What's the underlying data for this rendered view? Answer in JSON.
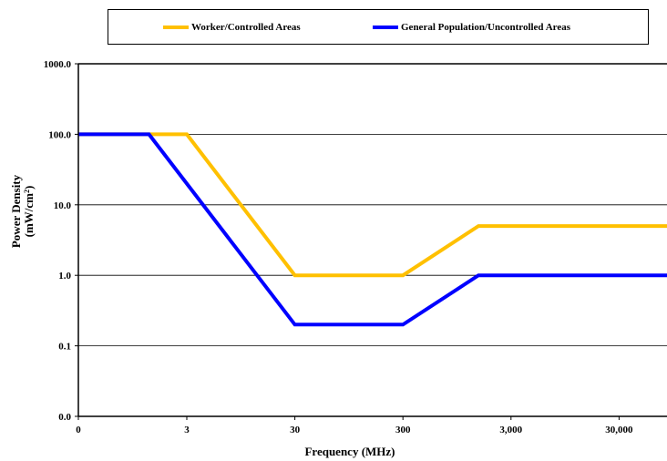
{
  "chart_data": {
    "type": "line",
    "title": "",
    "xlabel": "Frequency (MHz)",
    "ylabel_line1": "Power Density",
    "ylabel_line2_base": "(mW/cm",
    "ylabel_line2_sup": "2",
    "ylabel_line2_end": ")",
    "yscale": "log",
    "ylim": [
      0.01,
      1000
    ],
    "y_ticks": [
      {
        "value": 0.01,
        "label": "0.0"
      },
      {
        "value": 0.1,
        "label": "0.1"
      },
      {
        "value": 1,
        "label": "1.0"
      },
      {
        "value": 10,
        "label": "10.0"
      },
      {
        "value": 100,
        "label": "100.0"
      },
      {
        "value": 1000,
        "label": "1000.0"
      }
    ],
    "xscale": "log",
    "xlim": [
      0.3,
      100000
    ],
    "x_ticks": [
      {
        "value": 0.3,
        "label": "0"
      },
      {
        "value": 3,
        "label": "3"
      },
      {
        "value": 30,
        "label": "30"
      },
      {
        "value": 300,
        "label": "300"
      },
      {
        "value": 3000,
        "label": "3,000"
      },
      {
        "value": 30000,
        "label": "30,000"
      }
    ],
    "grid": "horizontal",
    "legend_position": "top",
    "series": [
      {
        "name": "Worker/Controlled Areas",
        "color": "#FFC000",
        "points": [
          [
            0.3,
            100
          ],
          [
            3,
            100
          ],
          [
            30,
            1
          ],
          [
            300,
            1
          ],
          [
            1500,
            5
          ],
          [
            100000,
            5
          ]
        ]
      },
      {
        "name": "General Population/Uncontrolled Areas",
        "color": "#0000FF",
        "points": [
          [
            0.3,
            100
          ],
          [
            1.34,
            100
          ],
          [
            30,
            0.2
          ],
          [
            300,
            0.2
          ],
          [
            1500,
            1
          ],
          [
            100000,
            1
          ]
        ]
      }
    ]
  }
}
